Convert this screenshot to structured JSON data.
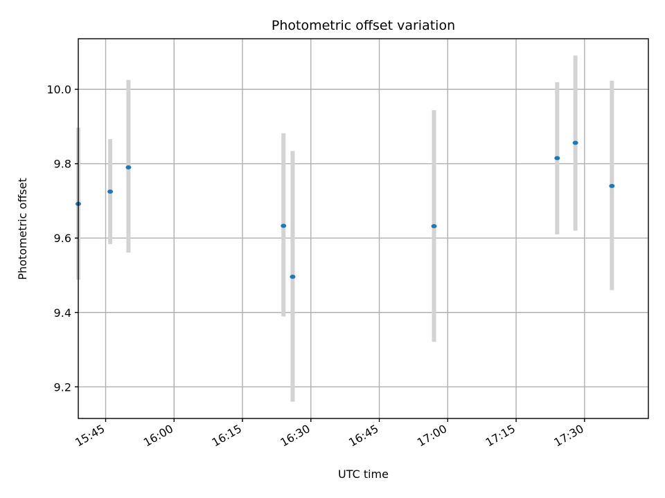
{
  "chart_data": {
    "type": "scatter",
    "title": "Photometric offset variation",
    "xlabel": "UTC time",
    "ylabel": "Photometric offset",
    "x_ticks": [
      "15:45",
      "16:00",
      "16:15",
      "16:30",
      "16:45",
      "17:00",
      "17:15",
      "17:30"
    ],
    "y_ticks": [
      "9.2",
      "9.4",
      "9.6",
      "9.8",
      "10.0"
    ],
    "xlim": [
      "15:39",
      "17:44"
    ],
    "ylim": [
      9.115,
      10.136
    ],
    "grid": true,
    "errorbar_color": "#d3d3d3",
    "marker_color": "#1f77b4",
    "points": [
      {
        "x": "15:39",
        "y": 9.692,
        "yerr_low": 9.488,
        "yerr_high": 9.897
      },
      {
        "x": "15:46",
        "y": 9.725,
        "yerr_low": 9.584,
        "yerr_high": 9.866
      },
      {
        "x": "15:50",
        "y": 9.79,
        "yerr_low": 9.561,
        "yerr_high": 10.025
      },
      {
        "x": "16:24",
        "y": 9.633,
        "yerr_low": 9.389,
        "yerr_high": 9.882
      },
      {
        "x": "16:26",
        "y": 9.496,
        "yerr_low": 9.16,
        "yerr_high": 9.834
      },
      {
        "x": "16:57",
        "y": 9.632,
        "yerr_low": 9.321,
        "yerr_high": 9.944
      },
      {
        "x": "17:24",
        "y": 9.815,
        "yerr_low": 9.61,
        "yerr_high": 10.019
      },
      {
        "x": "17:28",
        "y": 9.856,
        "yerr_low": 9.62,
        "yerr_high": 10.091
      },
      {
        "x": "17:36",
        "y": 9.74,
        "yerr_low": 9.46,
        "yerr_high": 10.023
      }
    ]
  }
}
